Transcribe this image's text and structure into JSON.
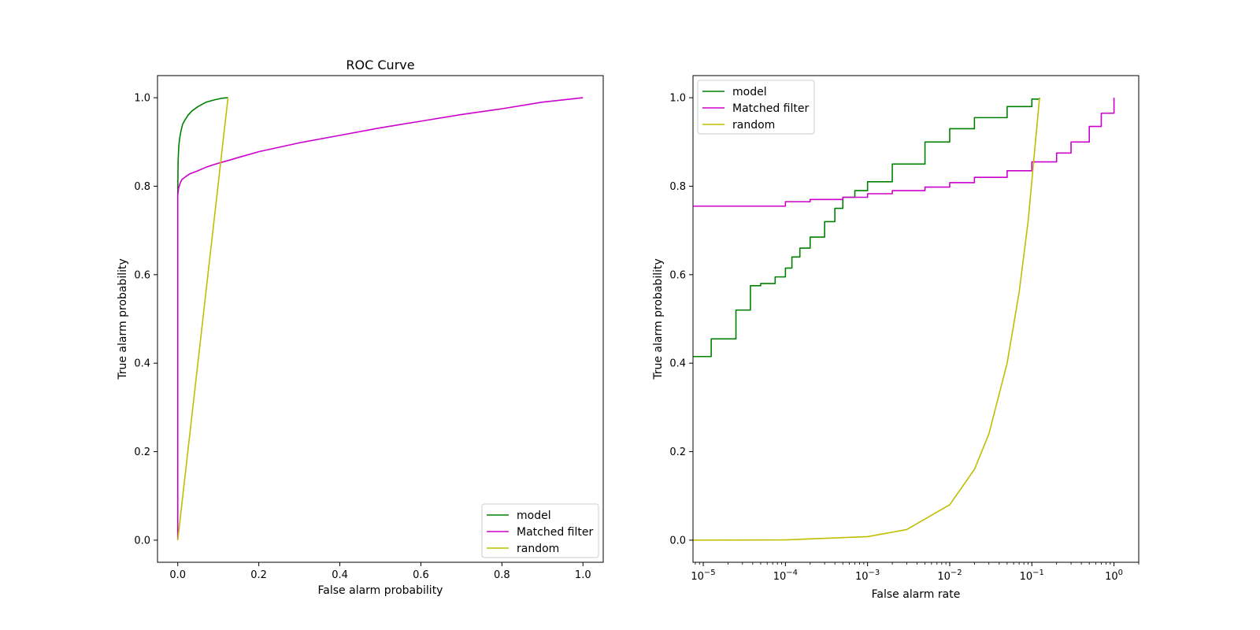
{
  "figure": {
    "background": "#ffffff"
  },
  "chart_data": [
    {
      "type": "line",
      "title": "ROC Curve",
      "xlabel": "False alarm probability",
      "ylabel": "True alarm probability",
      "xscale": "linear",
      "xlim": [
        -0.05,
        1.05
      ],
      "ylim": [
        -0.05,
        1.05
      ],
      "xticks": [
        0.0,
        0.2,
        0.4,
        0.6,
        0.8,
        1.0
      ],
      "xtick_labels": [
        "0.0",
        "0.2",
        "0.4",
        "0.6",
        "0.8",
        "1.0"
      ],
      "yticks": [
        0.0,
        0.2,
        0.4,
        0.6,
        0.8,
        1.0
      ],
      "ytick_labels": [
        "0.0",
        "0.2",
        "0.4",
        "0.6",
        "0.8",
        "1.0"
      ],
      "grid": false,
      "legend_position": "lower-right",
      "series": [
        {
          "name": "model",
          "color": "#008000",
          "x": [
            0.0,
            0.0005,
            0.001,
            0.002,
            0.003,
            0.005,
            0.008,
            0.012,
            0.018,
            0.025,
            0.035,
            0.05,
            0.07,
            0.09,
            0.11,
            0.124
          ],
          "y": [
            0.78,
            0.83,
            0.86,
            0.88,
            0.895,
            0.91,
            0.925,
            0.94,
            0.95,
            0.96,
            0.97,
            0.98,
            0.99,
            0.995,
            0.999,
            1.0
          ]
        },
        {
          "name": "Matched filter",
          "color": "#cc00cc",
          "x": [
            0.0,
            0.0,
            0.002,
            0.005,
            0.01,
            0.02,
            0.03,
            0.05,
            0.07,
            0.1,
            0.12,
            0.15,
            0.2,
            0.3,
            0.4,
            0.5,
            0.6,
            0.7,
            0.8,
            0.9,
            1.0
          ],
          "y": [
            0.0,
            0.78,
            0.795,
            0.805,
            0.815,
            0.822,
            0.828,
            0.835,
            0.843,
            0.852,
            0.857,
            0.865,
            0.878,
            0.898,
            0.915,
            0.932,
            0.947,
            0.962,
            0.975,
            0.99,
            1.0
          ]
        },
        {
          "name": "random",
          "color": "#bfbf00",
          "x": [
            0.0,
            0.124
          ],
          "y": [
            0.0,
            1.0
          ]
        }
      ]
    },
    {
      "type": "line",
      "title": "",
      "xlabel": "False alarm rate",
      "ylabel": "True alarm probability",
      "xscale": "log",
      "xlim": [
        7.5e-06,
        2.0
      ],
      "ylim": [
        -0.05,
        1.05
      ],
      "xticks": [
        1e-05,
        0.0001,
        0.001,
        0.01,
        0.1,
        1
      ],
      "xtick_labels": [
        [
          "10",
          "−5"
        ],
        [
          "10",
          "−4"
        ],
        [
          "10",
          "−3"
        ],
        [
          "10",
          "−2"
        ],
        [
          "10",
          "−1"
        ],
        [
          "10",
          "0"
        ]
      ],
      "yticks": [
        0.0,
        0.2,
        0.4,
        0.6,
        0.8,
        1.0
      ],
      "ytick_labels": [
        "0.0",
        "0.2",
        "0.4",
        "0.6",
        "0.8",
        "1.0"
      ],
      "grid": false,
      "legend_position": "upper-left",
      "series": [
        {
          "name": "model",
          "color": "#008000",
          "step": true,
          "x": [
            7.5e-06,
            1.25e-05,
            2.5e-05,
            3.75e-05,
            5e-05,
            7.5e-05,
            0.0001,
            0.00012,
            0.00015,
            0.0002,
            0.0003,
            0.0004,
            0.0005,
            0.0007,
            0.001,
            0.002,
            0.005,
            0.01,
            0.02,
            0.05,
            0.1,
            0.124
          ],
          "y": [
            0.415,
            0.455,
            0.52,
            0.575,
            0.58,
            0.595,
            0.615,
            0.64,
            0.66,
            0.685,
            0.72,
            0.75,
            0.775,
            0.79,
            0.81,
            0.85,
            0.9,
            0.93,
            0.955,
            0.98,
            0.997,
            1.0
          ]
        },
        {
          "name": "Matched filter",
          "color": "#cc00cc",
          "step": true,
          "x": [
            7.5e-06,
            0.0001,
            0.0002,
            0.0005,
            0.001,
            0.002,
            0.005,
            0.01,
            0.02,
            0.05,
            0.1,
            0.2,
            0.3,
            0.5,
            0.7,
            1.0
          ],
          "y": [
            0.755,
            0.765,
            0.77,
            0.775,
            0.783,
            0.79,
            0.798,
            0.808,
            0.82,
            0.835,
            0.855,
            0.875,
            0.9,
            0.935,
            0.965,
            1.0
          ]
        },
        {
          "name": "random",
          "color": "#bfbf00",
          "step": false,
          "x": [
            7.5e-06,
            0.0001,
            0.001,
            0.003,
            0.01,
            0.02,
            0.03,
            0.05,
            0.07,
            0.09,
            0.124
          ],
          "y": [
            0.0,
            0.0006,
            0.008,
            0.024,
            0.08,
            0.16,
            0.24,
            0.4,
            0.56,
            0.72,
            1.0
          ]
        }
      ]
    }
  ]
}
